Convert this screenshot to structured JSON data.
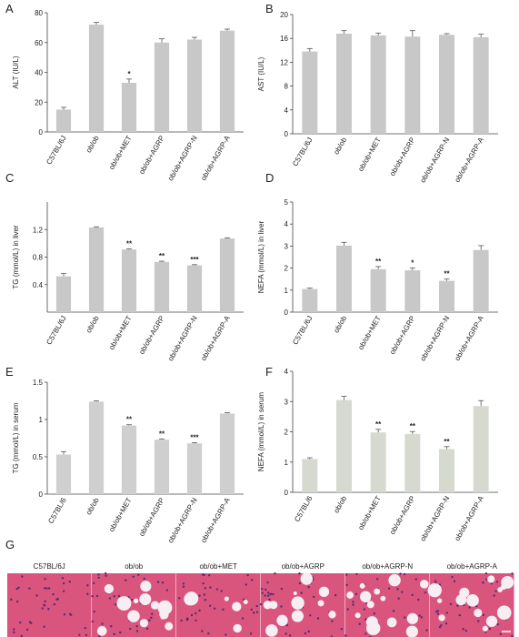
{
  "chart_data": [
    {
      "type": "bar",
      "panel": "A",
      "y_label": "ALT (IU/L)",
      "color": "#c8c8c8",
      "categories": [
        "C57BL/6J",
        "ob/ob",
        "ob/ob+MET",
        "ob/ob+AGRP",
        "ob/ob+AGRP-N",
        "ob/ob+AGRP-A"
      ],
      "values": [
        15,
        72,
        33,
        60,
        62,
        68
      ],
      "errors": [
        1.5,
        1.5,
        2.5,
        2.5,
        1.5,
        1
      ],
      "annotations": [
        null,
        null,
        "*",
        null,
        null,
        null
      ],
      "ylim": [
        0,
        80
      ],
      "yticks": [
        0,
        20,
        40,
        60,
        80
      ]
    },
    {
      "type": "bar",
      "panel": "B",
      "y_label": "AST (IU/L)",
      "color": "#c8c8c8",
      "categories": [
        "C57BL/6J",
        "ob/ob",
        "ob/ob+MET",
        "ob/ob+AGRP",
        "ob/ob+AGRP-N",
        "ob/ob+AGRP-A"
      ],
      "values": [
        13.8,
        16.8,
        16.5,
        16.3,
        16.6,
        16.2
      ],
      "errors": [
        0.5,
        0.5,
        0.4,
        1,
        0.2,
        0.5
      ],
      "annotations": [
        null,
        null,
        null,
        null,
        null,
        null
      ],
      "ylim": [
        0,
        20
      ],
      "yticks": [
        0,
        4,
        8,
        12,
        16,
        20
      ]
    },
    {
      "type": "bar",
      "panel": "C",
      "y_label": "TG (mmol/L) in liver",
      "color": "#c8c8c8",
      "categories": [
        "C57BL/6J",
        "ob/ob",
        "ob/ob+MET",
        "ob/ob+AGRP",
        "ob/ob+AGRP-N",
        "ob/ob+AGRP-A"
      ],
      "values": [
        0.52,
        1.23,
        0.91,
        0.73,
        0.68,
        1.07
      ],
      "errors": [
        0.04,
        0.01,
        0.01,
        0.01,
        0.01,
        0.01
      ],
      "annotations": [
        null,
        null,
        "**",
        "**",
        "***",
        null
      ],
      "ylim": [
        0,
        1.6
      ],
      "yticks": [
        0.4,
        0.8,
        1.2
      ]
    },
    {
      "type": "bar",
      "panel": "D",
      "y_label": "NEFA (mmol/L) in liver",
      "color": "#c8c8c8",
      "categories": [
        "C57BL/6J",
        "ob/ob",
        "ob/ob+MET",
        "ob/ob+AGRP",
        "ob/ob+AGRP-N",
        "ob/ob+AGRP-A"
      ],
      "values": [
        1.05,
        3.02,
        1.95,
        1.9,
        1.42,
        2.82
      ],
      "errors": [
        0.04,
        0.15,
        0.12,
        0.1,
        0.08,
        0.2
      ],
      "annotations": [
        null,
        null,
        "**",
        "*",
        "**",
        null
      ],
      "ylim": [
        0,
        5
      ],
      "yticks": [
        0,
        1,
        2,
        3,
        4,
        5
      ]
    },
    {
      "type": "bar",
      "panel": "E",
      "y_label": "TG (mmol/L) in serum",
      "color": "#cfcfcf",
      "categories": [
        "C57BL/6",
        "ob/ob",
        "ob/ob+MET",
        "ob/ob+AGRP",
        "ob/ob+AGRP-N",
        "ob/ob+AGRP-A"
      ],
      "values": [
        0.53,
        1.24,
        0.92,
        0.73,
        0.68,
        1.08
      ],
      "errors": [
        0.04,
        0.01,
        0.01,
        0.01,
        0.01,
        0.01
      ],
      "annotations": [
        null,
        null,
        "**",
        "**",
        "***",
        null
      ],
      "ylim": [
        0,
        1.5
      ],
      "yticks": [
        0,
        0.5,
        1,
        1.5
      ]
    },
    {
      "type": "bar",
      "panel": "F",
      "y_label": "NEFA (mmol/L) in serum",
      "color": "#d6d9d0",
      "categories": [
        "C57BL/6",
        "ob/ob",
        "ob/ob+MET",
        "ob/ob+AGRP",
        "ob/ob+AGRP-N",
        "ob/ob+AGRP-A"
      ],
      "values": [
        1.1,
        3.05,
        1.98,
        1.93,
        1.43,
        2.85
      ],
      "errors": [
        0.04,
        0.12,
        0.1,
        0.08,
        0.08,
        0.18
      ],
      "annotations": [
        null,
        null,
        "**",
        "**",
        "**",
        null
      ],
      "ylim": [
        0,
        4
      ],
      "yticks": [
        0,
        1,
        2,
        3,
        4
      ]
    }
  ],
  "histology": {
    "panel": "G",
    "images": [
      "C57BL/6J",
      "ob/ob",
      "ob/ob+MET",
      "ob/ob+AGRP",
      "ob/ob+AGRP-N",
      "ob/ob+AGRP-A"
    ]
  }
}
